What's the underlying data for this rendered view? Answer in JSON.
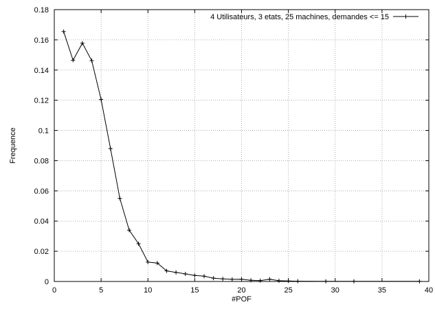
{
  "chart_data": {
    "type": "line",
    "xlabel": "#POF",
    "ylabel": "Frequence",
    "xlim": [
      0,
      40
    ],
    "ylim": [
      0,
      0.18
    ],
    "x_ticks": [
      0,
      5,
      10,
      15,
      20,
      25,
      30,
      35,
      40
    ],
    "y_ticks": [
      0,
      0.02,
      0.04,
      0.06,
      0.08,
      0.1,
      0.12,
      0.14,
      0.16,
      0.18
    ],
    "x_tick_labels": [
      "0",
      "5",
      "10",
      "15",
      "20",
      "25",
      "30",
      "35",
      "40"
    ],
    "y_tick_labels": [
      "0",
      "0.02",
      "0.04",
      "0.06",
      "0.08",
      "0.1",
      "0.12",
      "0.14",
      "0.16",
      "0.18"
    ],
    "grid": true,
    "legend_position": "top-right",
    "marker": "plus",
    "series": [
      {
        "name": "4 Utilisateurs, 3 etats, 25 machines, demandes <= 15",
        "color": "#000000",
        "points": [
          [
            1,
            0.1655
          ],
          [
            2,
            0.1465
          ],
          [
            3,
            0.1578
          ],
          [
            4,
            0.1462
          ],
          [
            5,
            0.1205
          ],
          [
            6,
            0.088
          ],
          [
            7,
            0.055
          ],
          [
            8,
            0.034
          ],
          [
            9,
            0.025
          ],
          [
            10,
            0.0128
          ],
          [
            11,
            0.0122
          ],
          [
            12,
            0.007
          ],
          [
            13,
            0.006
          ],
          [
            14,
            0.005
          ],
          [
            15,
            0.004
          ],
          [
            16,
            0.0035
          ],
          [
            17,
            0.0022
          ],
          [
            18,
            0.0017
          ],
          [
            19,
            0.0014
          ],
          [
            20,
            0.0015
          ],
          [
            21,
            0.0008
          ],
          [
            22,
            0.0006
          ],
          [
            23,
            0.0015
          ],
          [
            24,
            0.0005
          ],
          [
            25,
            0.0003
          ],
          [
            26,
            0.0002
          ],
          [
            29,
            0.0001
          ],
          [
            32,
            0.0001
          ],
          [
            39,
            0.0001
          ]
        ]
      }
    ]
  }
}
